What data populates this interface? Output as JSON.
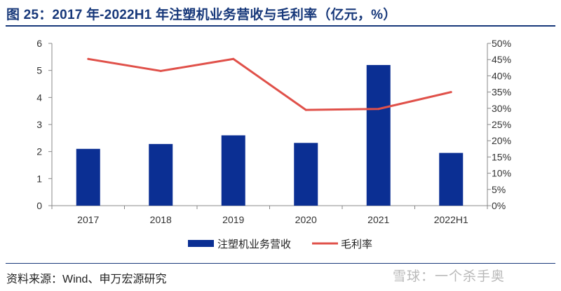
{
  "title": "图 25：2017 年-2022H1 年注塑机业务营收与毛利率（亿元，%）",
  "source": "资料来源：Wind、申万宏源研究",
  "watermark": "雪球：一个杀手奥",
  "colors": {
    "bar": "#0b2f93",
    "line": "#e0514a",
    "accent": "#17387a"
  },
  "chart_data": {
    "type": "bar",
    "categories": [
      "2017",
      "2018",
      "2019",
      "2020",
      "2021",
      "2022H1"
    ],
    "series": [
      {
        "name": "注塑机业务营收",
        "type": "bar",
        "axis": "left",
        "values": [
          2.1,
          2.28,
          2.6,
          2.32,
          5.2,
          1.95
        ]
      },
      {
        "name": "毛利率",
        "type": "line",
        "axis": "right",
        "values": [
          45.2,
          41.5,
          45.2,
          29.5,
          29.8,
          35.0
        ]
      }
    ],
    "y_left": {
      "min": 0,
      "max": 6,
      "ticks": [
        "0",
        "1",
        "2",
        "3",
        "4",
        "5",
        "6"
      ]
    },
    "y_right": {
      "min": 0,
      "max": 50,
      "ticks": [
        "0%",
        "5%",
        "10%",
        "15%",
        "20%",
        "25%",
        "30%",
        "35%",
        "40%",
        "45%",
        "50%"
      ]
    },
    "legend_position": "bottom",
    "grid": false
  }
}
